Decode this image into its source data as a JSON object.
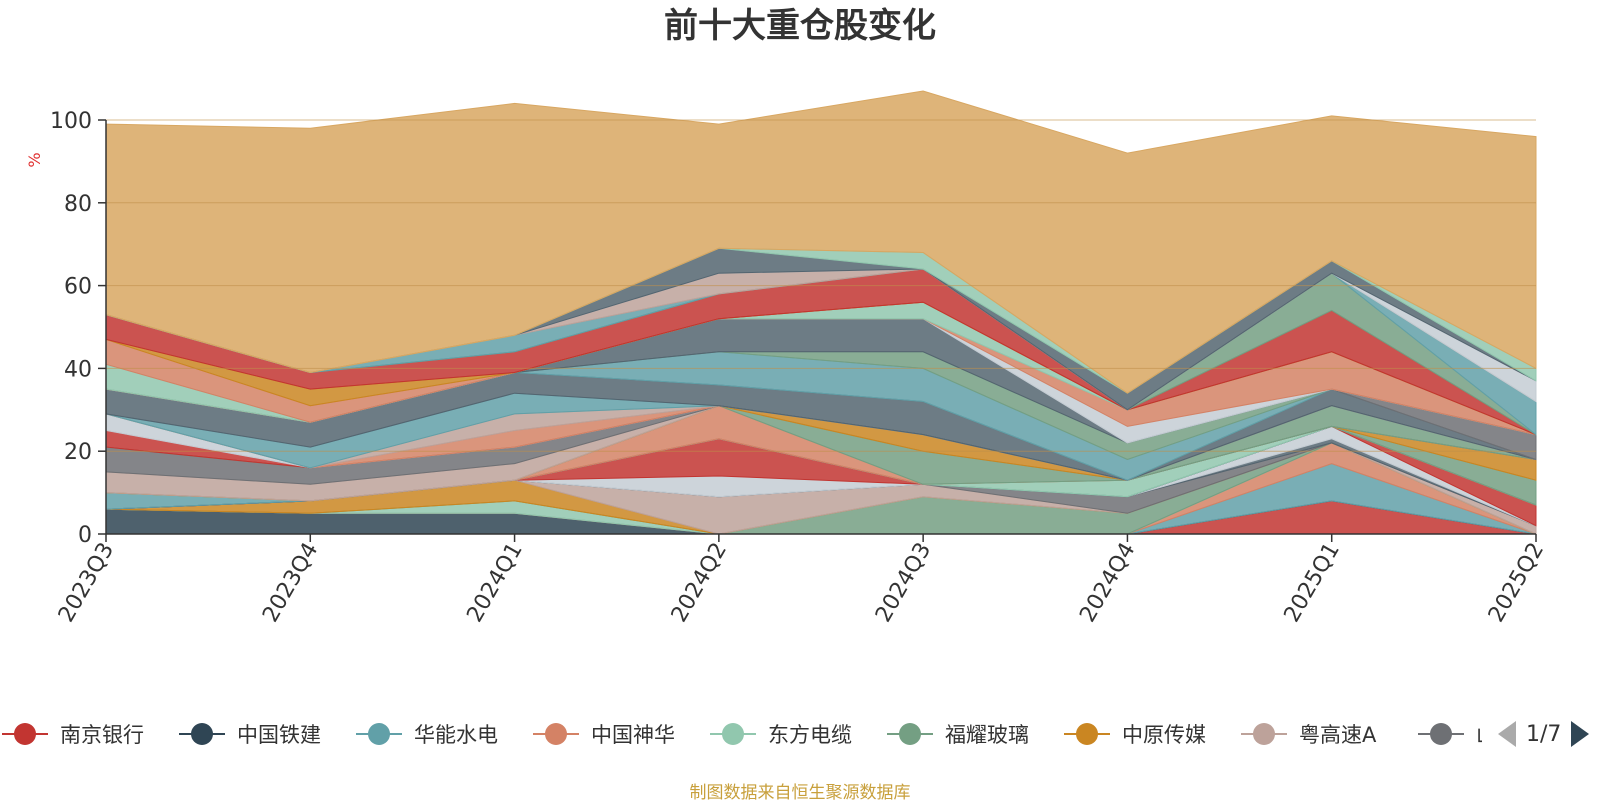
{
  "chart_data": {
    "type": "area",
    "stacked": true,
    "title": "前十大重仓股变化",
    "ylabel": "%",
    "ylim": [
      0,
      100
    ],
    "yticks": [
      0,
      20,
      40,
      60,
      80,
      100
    ],
    "grid": true,
    "categories": [
      "2023Q3",
      "2023Q4",
      "2024Q1",
      "2024Q2",
      "2024Q3",
      "2024Q4",
      "2025Q1",
      "2025Q2"
    ],
    "series": [
      {
        "name": "南京银行",
        "color": "#c23531",
        "values": [
          0,
          0,
          0,
          0,
          0,
          0,
          8,
          0
        ]
      },
      {
        "name": "中国铁建",
        "color": "#2f4554",
        "values": [
          6,
          5,
          5,
          0,
          0,
          0,
          0,
          0
        ]
      },
      {
        "name": "华能水电",
        "color": "#61a0a8",
        "values": [
          0,
          0,
          0,
          0,
          0,
          0,
          9,
          0
        ]
      },
      {
        "name": "中国神华",
        "color": "#d48265",
        "values": [
          0,
          0,
          0,
          0,
          0,
          0,
          5,
          0
        ]
      },
      {
        "name": "东方电缆",
        "color": "#91c7ae",
        "values": [
          0,
          0,
          3,
          0,
          0,
          0,
          0,
          0
        ]
      },
      {
        "name": "福耀玻璃",
        "color": "#749f83",
        "values": [
          0,
          0,
          0,
          0,
          9,
          5,
          0,
          0
        ]
      },
      {
        "name": "中原传媒",
        "color": "#ca8622",
        "values": [
          0,
          3,
          5,
          0,
          0,
          0,
          0,
          0
        ]
      },
      {
        "name": "粤高速A",
        "color": "#bda29a",
        "values": [
          0,
          0,
          0,
          9,
          3,
          0,
          0,
          2
        ]
      },
      {
        "name": "",
        "color": "#6e7074",
        "values": [
          0,
          0,
          0,
          0,
          0,
          4,
          0,
          0
        ]
      },
      {
        "name": "",
        "color": "#546570",
        "values": [
          0,
          0,
          0,
          0,
          0,
          0,
          1,
          0
        ]
      },
      {
        "name": "",
        "color": "#c4ccd3",
        "values": [
          0,
          0,
          0,
          5,
          0,
          0,
          3,
          0
        ]
      },
      {
        "name": "",
        "color": "#c23531",
        "values": [
          0,
          0,
          0,
          9,
          0,
          0,
          0,
          5
        ]
      },
      {
        "name": "",
        "color": "#2f4554",
        "values": [
          0,
          0,
          0,
          0,
          0,
          0,
          0,
          0
        ]
      },
      {
        "name": "",
        "color": "#61a0a8",
        "values": [
          4,
          0,
          0,
          0,
          0,
          0,
          0,
          0
        ]
      },
      {
        "name": "",
        "color": "#91c7ae",
        "values": [
          0,
          0,
          0,
          0,
          0,
          4,
          0,
          0
        ]
      },
      {
        "name": "",
        "color": "#d48265",
        "values": [
          0,
          0,
          0,
          8,
          0,
          0,
          0,
          0
        ]
      },
      {
        "name": "",
        "color": "#749f83",
        "values": [
          0,
          0,
          0,
          0,
          8,
          0,
          0,
          6
        ]
      },
      {
        "name": "",
        "color": "#ca8622",
        "values": [
          0,
          0,
          0,
          0,
          4,
          0,
          0,
          5
        ]
      },
      {
        "name": "",
        "color": "#bda29a",
        "values": [
          5,
          4,
          4,
          0,
          0,
          0,
          0,
          0
        ]
      },
      {
        "name": "",
        "color": "#6e7074",
        "values": [
          6,
          4,
          4,
          0,
          0,
          0,
          0,
          0
        ]
      },
      {
        "name": "",
        "color": "#749f83",
        "values": [
          0,
          0,
          0,
          0,
          0,
          0,
          5,
          0
        ]
      },
      {
        "name": "",
        "color": "#c23531",
        "values": [
          4,
          0,
          0,
          0,
          0,
          0,
          0,
          0
        ]
      },
      {
        "name": "",
        "color": "#c4ccd3",
        "values": [
          4,
          0,
          0,
          0,
          0,
          0,
          0,
          0
        ]
      },
      {
        "name": "",
        "color": "#d48265",
        "values": [
          0,
          0,
          4,
          0,
          0,
          0,
          0,
          0
        ]
      },
      {
        "name": "",
        "color": "#bda29a",
        "values": [
          0,
          0,
          4,
          0,
          0,
          0,
          0,
          0
        ]
      },
      {
        "name": "",
        "color": "#61a0a8",
        "values": [
          0,
          5,
          5,
          0,
          0,
          0,
          0,
          0
        ]
      },
      {
        "name": "",
        "color": "#546570",
        "values": [
          6,
          6,
          5,
          5,
          8,
          0,
          4,
          0
        ]
      },
      {
        "name": "",
        "color": "#6e7074",
        "values": [
          0,
          0,
          0,
          0,
          0,
          0,
          0,
          6
        ]
      },
      {
        "name": "",
        "color": "#61a0a8",
        "values": [
          0,
          0,
          0,
          8,
          8,
          5,
          0,
          0
        ]
      },
      {
        "name": "",
        "color": "#749f83",
        "values": [
          0,
          0,
          0,
          0,
          4,
          4,
          0,
          0
        ]
      },
      {
        "name": "",
        "color": "#546570",
        "values": [
          0,
          0,
          0,
          8,
          8,
          0,
          0,
          0
        ]
      },
      {
        "name": "",
        "color": "#c4ccd3",
        "values": [
          0,
          0,
          0,
          0,
          0,
          4,
          0,
          0
        ]
      },
      {
        "name": "",
        "color": "#d48265",
        "values": [
          0,
          0,
          0,
          0,
          0,
          4,
          9,
          0
        ]
      },
      {
        "name": "",
        "color": "#91c7ae",
        "values": [
          6,
          0,
          0,
          0,
          4,
          0,
          0,
          0
        ]
      },
      {
        "name": "",
        "color": "#d48265",
        "values": [
          6,
          4,
          0,
          0,
          0,
          0,
          0,
          0
        ]
      },
      {
        "name": "",
        "color": "#ca8622",
        "values": [
          0,
          4,
          0,
          0,
          0,
          0,
          0,
          0
        ]
      },
      {
        "name": "",
        "color": "#c23531",
        "values": [
          6,
          4,
          5,
          6,
          8,
          0,
          10,
          0
        ]
      },
      {
        "name": "",
        "color": "#749f83",
        "values": [
          0,
          0,
          0,
          0,
          0,
          0,
          9,
          0
        ]
      },
      {
        "name": "",
        "color": "#61a0a8",
        "values": [
          0,
          0,
          4,
          0,
          0,
          0,
          0,
          8
        ]
      },
      {
        "name": "",
        "color": "#bda29a",
        "values": [
          0,
          0,
          0,
          5,
          0,
          0,
          0,
          0
        ]
      },
      {
        "name": "",
        "color": "#c4ccd3",
        "values": [
          0,
          0,
          0,
          0,
          0,
          0,
          0,
          5
        ]
      },
      {
        "name": "",
        "color": "#546570",
        "values": [
          0,
          0,
          0,
          6,
          0,
          4,
          3,
          0
        ]
      },
      {
        "name": "",
        "color": "#91c7ae",
        "values": [
          0,
          0,
          0,
          0,
          4,
          0,
          0,
          3
        ]
      },
      {
        "name": "",
        "color": "#d8a762",
        "values": [
          46,
          59,
          56,
          30,
          39,
          58,
          35,
          56
        ]
      }
    ],
    "legend": {
      "position": "bottom",
      "page": "1/7",
      "visible_count": 9,
      "last_visible_label_fragment": "山"
    },
    "source_note": "制图数据来自恒生聚源数据库"
  },
  "icons": {
    "prev": "triangle-left-icon",
    "next": "triangle-right-icon"
  },
  "colors": {
    "axis": "#333333",
    "grid": "#c0904a",
    "ylabel": "#e03030",
    "note": "#c8a03c",
    "pager_inactive": "#aaaaaa",
    "pager_active": "#2f4554"
  }
}
